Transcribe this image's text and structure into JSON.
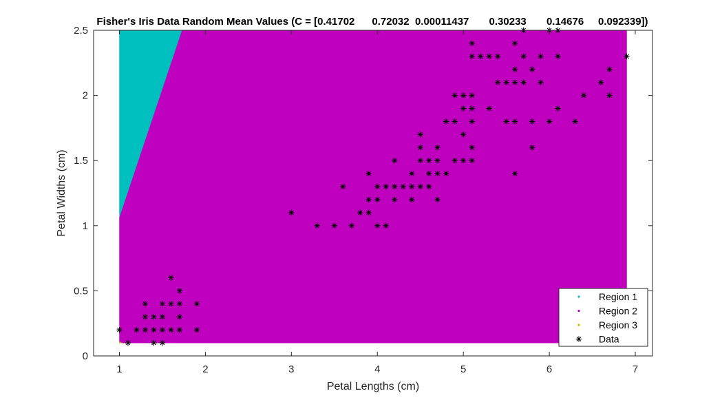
{
  "chart_data": {
    "type": "scatter",
    "title": "Fisher's Iris Data Random Mean Values (C = [0.41702      0.72032  0.00011437       0.30233       0.14676     0.092339])",
    "xlabel": "Petal Lengths (cm)",
    "ylabel": "Petal Widths (cm)",
    "xlim": [
      0.7,
      7.2
    ],
    "ylim": [
      0,
      2.5
    ],
    "xticks": [
      1,
      2,
      3,
      4,
      5,
      6,
      7
    ],
    "yticks": [
      0,
      0.5,
      1,
      1.5,
      2,
      2.5
    ],
    "xtick_labels": [
      "1",
      "2",
      "3",
      "4",
      "5",
      "6",
      "7"
    ],
    "ytick_labels": [
      "0",
      "0.5",
      "1",
      "1.5",
      "2",
      "2.5"
    ],
    "grid": false,
    "legend_position": "bottom-right",
    "regions": [
      {
        "name": "Region 1",
        "color": "#00bfbf",
        "polygon": [
          [
            1.0,
            2.5
          ],
          [
            1.0,
            1.06
          ],
          [
            1.73,
            2.5
          ]
        ]
      },
      {
        "name": "Region 2",
        "color": "#bf00bf",
        "polygon": [
          [
            1.0,
            0.1
          ],
          [
            6.9,
            0.1
          ],
          [
            6.9,
            2.5
          ],
          [
            1.73,
            2.5
          ],
          [
            1.0,
            1.06
          ]
        ]
      },
      {
        "name": "Region 3",
        "color": "#bfbf00",
        "polygon": [
          [
            1.0,
            0.1
          ],
          [
            1.03,
            0.1
          ],
          [
            1.0,
            0.11
          ]
        ]
      }
    ],
    "data_series": {
      "name": "Data",
      "color": "#000000",
      "marker": "asterisk",
      "points": [
        [
          1.0,
          0.2
        ],
        [
          1.1,
          0.1
        ],
        [
          1.2,
          0.2
        ],
        [
          1.3,
          0.2
        ],
        [
          1.3,
          0.3
        ],
        [
          1.3,
          0.4
        ],
        [
          1.4,
          0.1
        ],
        [
          1.4,
          0.2
        ],
        [
          1.4,
          0.3
        ],
        [
          1.5,
          0.1
        ],
        [
          1.5,
          0.2
        ],
        [
          1.5,
          0.3
        ],
        [
          1.5,
          0.4
        ],
        [
          1.6,
          0.2
        ],
        [
          1.6,
          0.4
        ],
        [
          1.6,
          0.6
        ],
        [
          1.7,
          0.2
        ],
        [
          1.7,
          0.3
        ],
        [
          1.7,
          0.4
        ],
        [
          1.7,
          0.5
        ],
        [
          1.9,
          0.2
        ],
        [
          1.9,
          0.4
        ],
        [
          3.0,
          1.1
        ],
        [
          3.3,
          1.0
        ],
        [
          3.5,
          1.0
        ],
        [
          3.6,
          1.3
        ],
        [
          3.7,
          1.0
        ],
        [
          3.8,
          1.1
        ],
        [
          3.9,
          1.1
        ],
        [
          3.9,
          1.2
        ],
        [
          3.9,
          1.4
        ],
        [
          4.0,
          1.0
        ],
        [
          4.0,
          1.2
        ],
        [
          4.0,
          1.3
        ],
        [
          4.1,
          1.0
        ],
        [
          4.1,
          1.3
        ],
        [
          4.2,
          1.2
        ],
        [
          4.2,
          1.3
        ],
        [
          4.2,
          1.5
        ],
        [
          4.3,
          1.3
        ],
        [
          4.4,
          1.2
        ],
        [
          4.4,
          1.3
        ],
        [
          4.4,
          1.4
        ],
        [
          4.5,
          1.3
        ],
        [
          4.5,
          1.5
        ],
        [
          4.5,
          1.6
        ],
        [
          4.5,
          1.7
        ],
        [
          4.6,
          1.3
        ],
        [
          4.6,
          1.4
        ],
        [
          4.6,
          1.5
        ],
        [
          4.7,
          1.2
        ],
        [
          4.7,
          1.4
        ],
        [
          4.7,
          1.5
        ],
        [
          4.7,
          1.6
        ],
        [
          4.8,
          1.4
        ],
        [
          4.8,
          1.8
        ],
        [
          4.9,
          1.5
        ],
        [
          4.9,
          1.8
        ],
        [
          4.9,
          2.0
        ],
        [
          5.0,
          1.5
        ],
        [
          5.0,
          1.7
        ],
        [
          5.0,
          1.9
        ],
        [
          5.0,
          2.0
        ],
        [
          5.1,
          1.5
        ],
        [
          5.1,
          1.6
        ],
        [
          5.1,
          1.8
        ],
        [
          5.1,
          1.9
        ],
        [
          5.1,
          2.0
        ],
        [
          5.1,
          2.3
        ],
        [
          5.1,
          2.4
        ],
        [
          5.2,
          2.3
        ],
        [
          5.3,
          1.9
        ],
        [
          5.3,
          2.3
        ],
        [
          5.4,
          2.1
        ],
        [
          5.4,
          2.3
        ],
        [
          5.5,
          1.8
        ],
        [
          5.5,
          2.1
        ],
        [
          5.6,
          1.4
        ],
        [
          5.6,
          1.8
        ],
        [
          5.6,
          2.1
        ],
        [
          5.6,
          2.2
        ],
        [
          5.6,
          2.4
        ],
        [
          5.7,
          2.1
        ],
        [
          5.7,
          2.3
        ],
        [
          5.7,
          2.5
        ],
        [
          5.8,
          1.6
        ],
        [
          5.8,
          1.8
        ],
        [
          5.8,
          2.2
        ],
        [
          5.9,
          2.1
        ],
        [
          5.9,
          2.3
        ],
        [
          6.0,
          1.8
        ],
        [
          6.0,
          2.5
        ],
        [
          6.1,
          1.9
        ],
        [
          6.1,
          2.3
        ],
        [
          6.1,
          2.5
        ],
        [
          6.3,
          1.8
        ],
        [
          6.4,
          2.0
        ],
        [
          6.6,
          2.1
        ],
        [
          6.7,
          2.0
        ],
        [
          6.7,
          2.2
        ],
        [
          6.9,
          2.3
        ]
      ]
    },
    "legend": [
      {
        "label": "Region 1",
        "color": "#00bfbf",
        "marker": "dot"
      },
      {
        "label": "Region 2",
        "color": "#bf00bf",
        "marker": "dot"
      },
      {
        "label": "Region 3",
        "color": "#bfbf00",
        "marker": "dot"
      },
      {
        "label": "Data",
        "color": "#000000",
        "marker": "asterisk"
      }
    ]
  }
}
